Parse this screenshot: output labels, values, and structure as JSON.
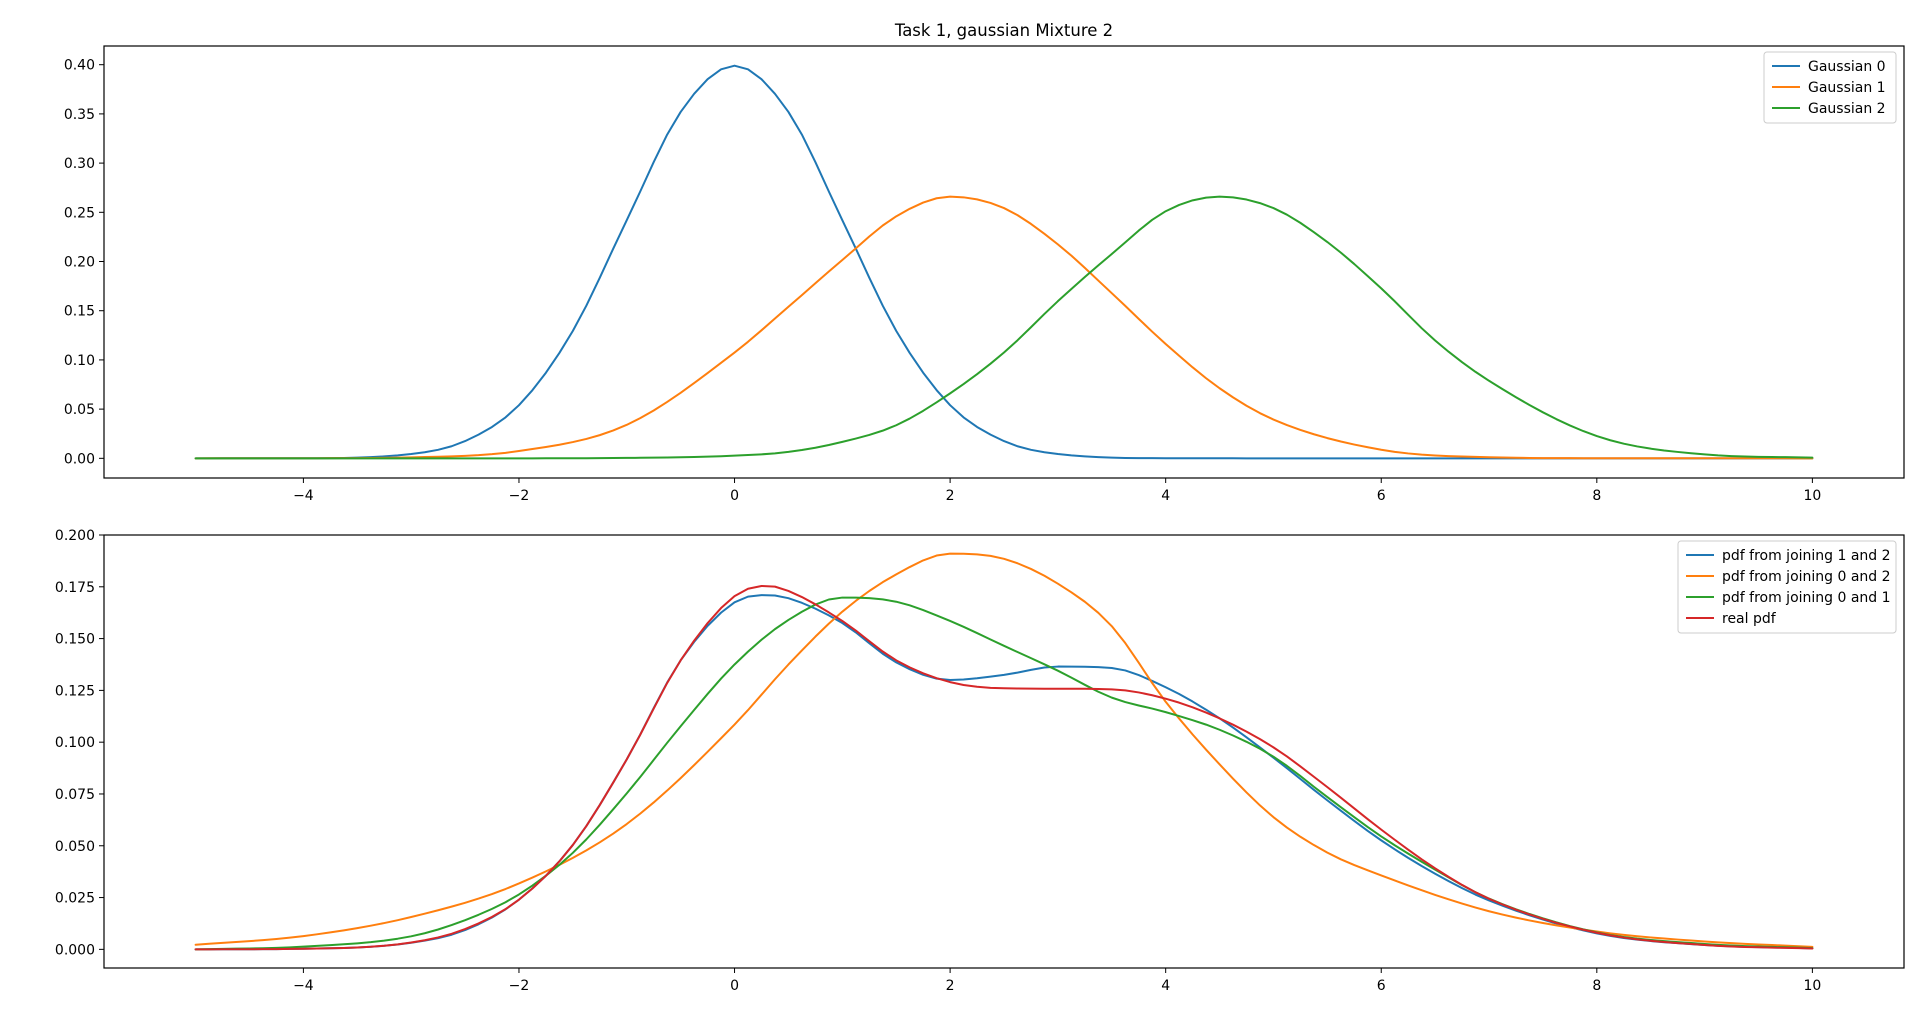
{
  "figure": {
    "title": "Task 1, gaussian Mixture 2"
  },
  "chart_data": [
    {
      "type": "line",
      "title": "Task 1, gaussian Mixture 2",
      "xlabel": "",
      "ylabel": "",
      "xlim": [
        -5.85,
        10.85
      ],
      "ylim": [
        -0.02,
        0.419
      ],
      "x_range": [
        -5,
        10
      ],
      "x_ticks": [
        -4,
        -2,
        0,
        2,
        4,
        6,
        8,
        10
      ],
      "x_tick_labels": [
        "−4",
        "−2",
        "0",
        "2",
        "4",
        "6",
        "8",
        "10"
      ],
      "y_ticks": [
        0.0,
        0.05,
        0.1,
        0.15,
        0.2,
        0.25,
        0.3,
        0.35,
        0.4
      ],
      "y_tick_labels": [
        "0.00",
        "0.05",
        "0.10",
        "0.15",
        "0.20",
        "0.25",
        "0.30",
        "0.35",
        "0.40"
      ],
      "grid": false,
      "legend_position": "top-right",
      "series": [
        {
          "name": "Gaussian 0",
          "color": "#1f77b4",
          "points": [
            [
              -5,
              0.0
            ],
            [
              -4,
              0.0001
            ],
            [
              -3,
              0.0044
            ],
            [
              -2.5,
              0.0175
            ],
            [
              -2,
              0.054
            ],
            [
              -1.5,
              0.1295
            ],
            [
              -1,
              0.242
            ],
            [
              -0.5,
              0.352
            ],
            [
              0,
              0.399
            ],
            [
              0.5,
              0.352
            ],
            [
              1,
              0.242
            ],
            [
              1.5,
              0.1295
            ],
            [
              2,
              0.054
            ],
            [
              2.5,
              0.0175
            ],
            [
              3,
              0.0044
            ],
            [
              4,
              0.0001
            ],
            [
              5,
              0.0
            ],
            [
              10,
              0.0
            ]
          ]
        },
        {
          "name": "Gaussian 1",
          "color": "#ff7f0e",
          "points": [
            [
              -5,
              0.0
            ],
            [
              -4,
              0.0001
            ],
            [
              -3,
              0.001
            ],
            [
              -2,
              0.0074
            ],
            [
              -1,
              0.034
            ],
            [
              0,
              0.1075
            ],
            [
              0.5,
              0.154
            ],
            [
              1,
              0.2015
            ],
            [
              1.5,
              0.2459
            ],
            [
              2,
              0.2659
            ],
            [
              2.5,
              0.2543
            ],
            [
              3,
              0.2174
            ],
            [
              3.5,
              0.1678
            ],
            [
              4,
              0.1162
            ],
            [
              4.5,
              0.0712
            ],
            [
              5,
              0.0394
            ],
            [
              6,
              0.0087
            ],
            [
              7,
              0.0011
            ],
            [
              8,
              0.0001
            ],
            [
              10,
              0.0
            ]
          ]
        },
        {
          "name": "Gaussian 2",
          "color": "#2ca02c",
          "points": [
            [
              -5,
              0.0
            ],
            [
              -2,
              0.0
            ],
            [
              -1,
              0.0004
            ],
            [
              0,
              0.0027
            ],
            [
              0.5,
              0.0065
            ],
            [
              1,
              0.0167
            ],
            [
              1.5,
              0.0336
            ],
            [
              2,
              0.066
            ],
            [
              2.5,
              0.1075
            ],
            [
              3,
              0.1597
            ],
            [
              3.5,
              0.2076
            ],
            [
              4,
              0.2511
            ],
            [
              4.5,
              0.2659
            ],
            [
              5,
              0.2543
            ],
            [
              5.5,
              0.2198
            ],
            [
              6,
              0.1727
            ],
            [
              6.5,
              0.1197
            ],
            [
              7,
              0.0788
            ],
            [
              8,
              0.0226
            ],
            [
              9,
              0.004
            ],
            [
              10,
              0.0007
            ]
          ]
        }
      ]
    },
    {
      "type": "line",
      "title": "",
      "xlabel": "",
      "ylabel": "",
      "xlim": [
        -5.85,
        10.85
      ],
      "ylim": [
        -0.009,
        0.2
      ],
      "x_range": [
        -5,
        10
      ],
      "x_ticks": [
        -4,
        -2,
        0,
        2,
        4,
        6,
        8,
        10
      ],
      "x_tick_labels": [
        "−4",
        "−2",
        "0",
        "2",
        "4",
        "6",
        "8",
        "10"
      ],
      "y_ticks": [
        0.0,
        0.025,
        0.05,
        0.075,
        0.1,
        0.125,
        0.15,
        0.175,
        0.2
      ],
      "y_tick_labels": [
        "0.000",
        "0.025",
        "0.050",
        "0.075",
        "0.100",
        "0.125",
        "0.150",
        "0.175",
        "0.200"
      ],
      "grid": false,
      "legend_position": "top-right",
      "series": [
        {
          "name": "pdf from joining 1 and 2",
          "color": "#1f77b4",
          "points": [
            [
              -5,
              0.0
            ],
            [
              -4,
              0.0003
            ],
            [
              -3,
              0.0032
            ],
            [
              -2.5,
              0.0093
            ],
            [
              -2,
              0.024
            ],
            [
              -1.5,
              0.0504
            ],
            [
              -1,
              0.0917
            ],
            [
              -0.5,
              0.1395
            ],
            [
              0,
              0.1675
            ],
            [
              0.3,
              0.171
            ],
            [
              0.5,
              0.1695
            ],
            [
              1,
              0.1575
            ],
            [
              1.5,
              0.1385
            ],
            [
              2,
              0.13
            ],
            [
              2.5,
              0.1325
            ],
            [
              3,
              0.1365
            ],
            [
              3.5,
              0.1358
            ],
            [
              4,
              0.1265
            ],
            [
              4.5,
              0.1115
            ],
            [
              5,
              0.0925
            ],
            [
              5.5,
              0.0719
            ],
            [
              6,
              0.0526
            ],
            [
              6.5,
              0.0365
            ],
            [
              7,
              0.0236
            ],
            [
              8,
              0.0077
            ],
            [
              9,
              0.0021
            ],
            [
              10,
              0.0005
            ]
          ]
        },
        {
          "name": "pdf from joining 0 and 2",
          "color": "#ff7f0e",
          "points": [
            [
              -5,
              0.0022
            ],
            [
              -4,
              0.0064
            ],
            [
              -3,
              0.0156
            ],
            [
              -2,
              0.0318
            ],
            [
              -1,
              0.0605
            ],
            [
              0,
              0.1085
            ],
            [
              0.5,
              0.1375
            ],
            [
              1,
              0.163
            ],
            [
              1.5,
              0.181
            ],
            [
              2,
              0.191
            ],
            [
              2.5,
              0.1885
            ],
            [
              3,
              0.1765
            ],
            [
              3.5,
              0.156
            ],
            [
              4,
              0.1195
            ],
            [
              4.5,
              0.0893
            ],
            [
              5,
              0.0638
            ],
            [
              5.5,
              0.0467
            ],
            [
              6,
              0.0357
            ],
            [
              7,
              0.0184
            ],
            [
              8,
              0.0086
            ],
            [
              9,
              0.0038
            ],
            [
              10,
              0.0012
            ]
          ]
        },
        {
          "name": "pdf from joining 0 and 1",
          "color": "#2ca02c",
          "points": [
            [
              -5,
              0.0
            ],
            [
              -4,
              0.0013
            ],
            [
              -3,
              0.0063
            ],
            [
              -2.5,
              0.0141
            ],
            [
              -2,
              0.0265
            ],
            [
              -1.5,
              0.0466
            ],
            [
              -1,
              0.0753
            ],
            [
              -0.5,
              0.1077
            ],
            [
              0,
              0.1375
            ],
            [
              0.5,
              0.159
            ],
            [
              1,
              0.1698
            ],
            [
              1.5,
              0.1678
            ],
            [
              2,
              0.1585
            ],
            [
              2.5,
              0.1465
            ],
            [
              3,
              0.1345
            ],
            [
              3.5,
              0.1215
            ],
            [
              4,
              0.1145
            ],
            [
              4.5,
              0.106
            ],
            [
              5,
              0.093
            ],
            [
              5.5,
              0.0735
            ],
            [
              6,
              0.0545
            ],
            [
              6.5,
              0.0385
            ],
            [
              7,
              0.0245
            ],
            [
              8,
              0.0082
            ],
            [
              9,
              0.0026
            ],
            [
              10,
              0.0006
            ]
          ]
        },
        {
          "name": "real pdf",
          "color": "#d62728",
          "points": [
            [
              -5,
              0.0
            ],
            [
              -4,
              0.0003
            ],
            [
              -3,
              0.0033
            ],
            [
              -2.5,
              0.0098
            ],
            [
              -2,
              0.024
            ],
            [
              -1.5,
              0.0504
            ],
            [
              -1,
              0.0917
            ],
            [
              -0.5,
              0.1395
            ],
            [
              0,
              0.1705
            ],
            [
              0.3,
              0.1755
            ],
            [
              0.5,
              0.173
            ],
            [
              1,
              0.1585
            ],
            [
              1.5,
              0.1395
            ],
            [
              2,
              0.129
            ],
            [
              2.5,
              0.126
            ],
            [
              3,
              0.1258
            ],
            [
              3.5,
              0.1255
            ],
            [
              4,
              0.121
            ],
            [
              4.5,
              0.1115
            ],
            [
              5,
              0.0975
            ],
            [
              5.5,
              0.0783
            ],
            [
              6,
              0.0578
            ],
            [
              6.5,
              0.0391
            ],
            [
              7,
              0.0244
            ],
            [
              8,
              0.008
            ],
            [
              9,
              0.0021
            ],
            [
              10,
              0.0004
            ]
          ]
        }
      ]
    }
  ]
}
